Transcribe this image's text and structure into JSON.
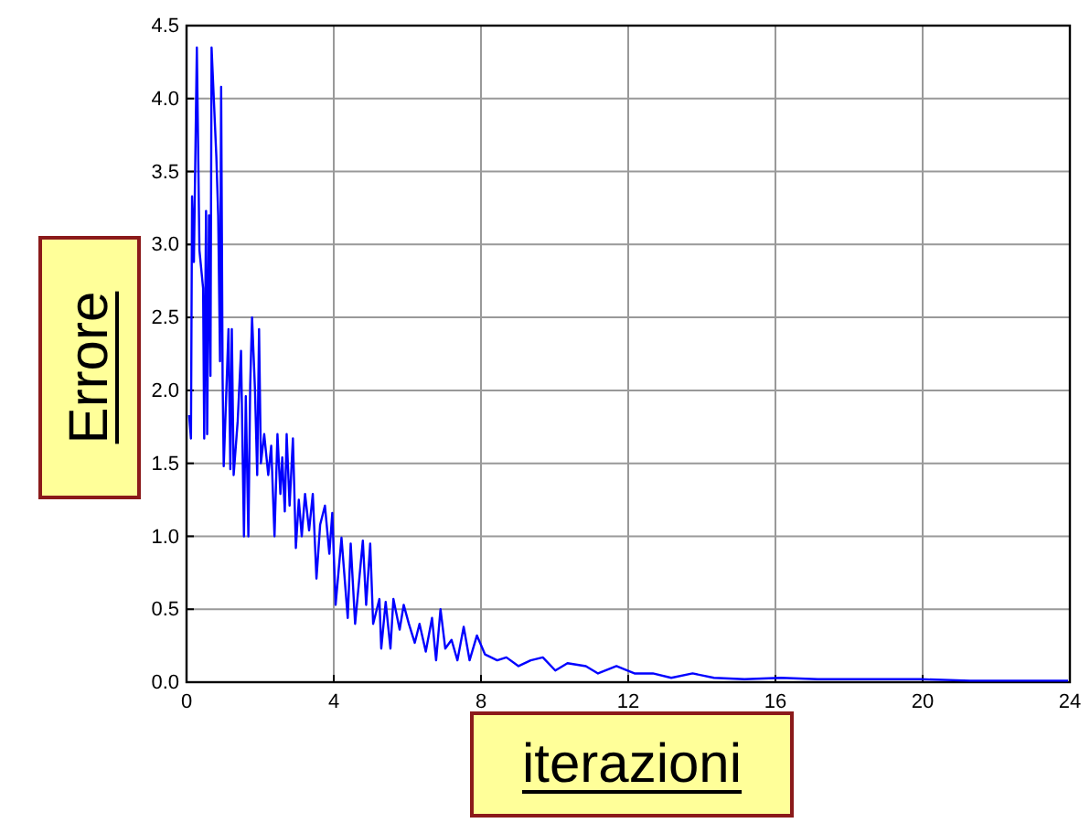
{
  "chart_data": {
    "type": "line",
    "xlabel": "iterazioni",
    "ylabel": "Errore",
    "xlim": [
      0,
      24
    ],
    "ylim": [
      0,
      4.5
    ],
    "xticks": [
      0,
      4,
      8,
      12,
      16,
      20,
      24
    ],
    "yticks": [
      {
        "value": 0,
        "label": "0.0"
      },
      {
        "value": 0.5,
        "label": "0.5"
      },
      {
        "value": 1,
        "label": "1.0"
      },
      {
        "value": 1.5,
        "label": "1.5"
      },
      {
        "value": 2,
        "label": "2.0"
      },
      {
        "value": 2.5,
        "label": "2.5"
      },
      {
        "value": 3,
        "label": "3.0"
      },
      {
        "value": 3.5,
        "label": "3.5"
      },
      {
        "value": 4,
        "label": "4.0"
      },
      {
        "value": 4.5,
        "label": "4.5"
      }
    ],
    "grid": true,
    "line_style": "solid",
    "x": [
      0.07,
      0.12,
      0.15,
      0.2,
      0.28,
      0.35,
      0.45,
      0.48,
      0.53,
      0.56,
      0.61,
      0.65,
      0.68,
      0.81,
      0.86,
      0.91,
      0.94,
      0.98,
      1.01,
      1.14,
      1.19,
      1.23,
      1.28,
      1.39,
      1.48,
      1.56,
      1.61,
      1.68,
      1.73,
      1.78,
      1.86,
      1.92,
      1.97,
      2.02,
      2.11,
      2.22,
      2.3,
      2.39,
      2.47,
      2.55,
      2.6,
      2.67,
      2.72,
      2.8,
      2.89,
      2.97,
      3.05,
      3.13,
      3.22,
      3.33,
      3.43,
      3.53,
      3.63,
      3.76,
      3.88,
      3.96,
      4.05,
      4.21,
      4.38,
      4.46,
      4.58,
      4.79,
      4.88,
      4.99,
      5.07,
      5.24,
      5.29,
      5.41,
      5.54,
      5.62,
      5.79,
      5.9,
      6.04,
      6.2,
      6.33,
      6.5,
      6.67,
      6.78,
      6.9,
      7.03,
      7.2,
      7.36,
      7.53,
      7.69,
      7.89,
      8.11,
      8.44,
      8.69,
      9.02,
      9.35,
      9.68,
      10.02,
      10.35,
      10.85,
      11.18,
      11.68,
      12.17,
      12.67,
      13.17,
      13.75,
      14.33,
      15.16,
      16.15,
      17.15,
      18.48,
      19.97,
      21.29,
      22.62,
      23.95
    ],
    "series": [
      {
        "color": "#0000ff",
        "values": [
          1.83,
          1.67,
          3.33,
          2.88,
          4.35,
          2.96,
          2.7,
          1.67,
          3.23,
          1.7,
          3.2,
          2.1,
          4.35,
          3.6,
          3.2,
          2.2,
          4.08,
          2.08,
          1.48,
          2.42,
          1.46,
          2.42,
          1.42,
          1.79,
          2.27,
          1.0,
          1.96,
          1.0,
          2.04,
          2.5,
          2.0,
          1.42,
          2.42,
          1.5,
          1.7,
          1.42,
          1.62,
          1.0,
          1.7,
          1.29,
          1.54,
          1.17,
          1.7,
          1.21,
          1.67,
          0.92,
          1.25,
          1.0,
          1.29,
          1.04,
          1.29,
          0.71,
          1.08,
          1.21,
          0.88,
          1.16,
          0.53,
          0.99,
          0.44,
          0.95,
          0.4,
          0.97,
          0.53,
          0.95,
          0.4,
          0.57,
          0.23,
          0.55,
          0.23,
          0.57,
          0.36,
          0.53,
          0.4,
          0.27,
          0.4,
          0.21,
          0.44,
          0.15,
          0.5,
          0.23,
          0.29,
          0.15,
          0.38,
          0.15,
          0.32,
          0.19,
          0.15,
          0.17,
          0.11,
          0.15,
          0.17,
          0.08,
          0.13,
          0.11,
          0.06,
          0.11,
          0.06,
          0.06,
          0.03,
          0.06,
          0.03,
          0.02,
          0.03,
          0.02,
          0.02,
          0.02,
          0.01,
          0.01,
          0.01
        ]
      }
    ]
  }
}
